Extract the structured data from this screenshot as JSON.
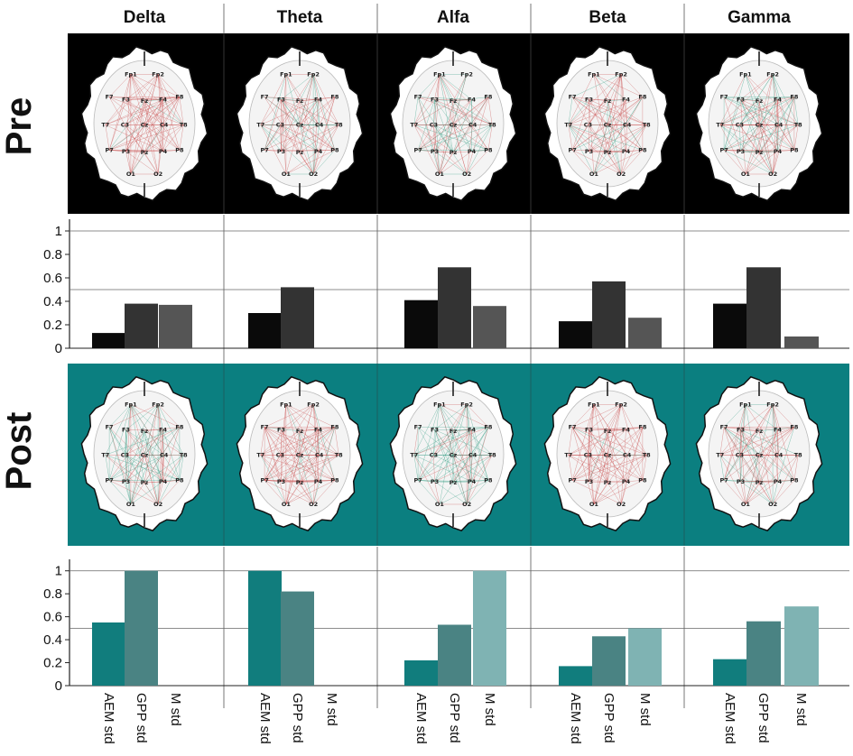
{
  "chart_data": {
    "type": "bar",
    "bands": [
      "Delta",
      "Theta",
      "Alfa",
      "Beta",
      "Gamma"
    ],
    "row_labels": [
      "Pre",
      "Post"
    ],
    "categories": [
      "AEM std",
      "GPP std",
      "M std"
    ],
    "ylim": [
      0,
      1.1
    ],
    "yticks": [
      "0",
      "0.2",
      "0.4",
      "0.6",
      "0.8",
      "1"
    ],
    "electrodes": [
      "Fp1",
      "Fp2",
      "F7",
      "F3",
      "Fz",
      "F4",
      "F8",
      "T7",
      "C3",
      "Cz",
      "C4",
      "T8",
      "P7",
      "P3",
      "Pz",
      "P4",
      "P8",
      "O1",
      "O2"
    ],
    "colors": {
      "pre_bg": "#000000",
      "post_bg": "#0b7f80",
      "pre_bars": [
        "#0a0a0a",
        "#333333",
        "#555555"
      ],
      "post_bars": [
        "#117d7d",
        "#4a8383",
        "#7fb3b3"
      ],
      "red_edge": "#c94a4a",
      "green_edge": "#2e9a80"
    },
    "panels": [
      {
        "row": "Pre",
        "series": [
          {
            "band": "Delta",
            "values": [
              0.13,
              0.38,
              0.37
            ]
          },
          {
            "band": "Theta",
            "values": [
              0.3,
              0.52,
              0
            ]
          },
          {
            "band": "Alfa",
            "values": [
              0.41,
              0.69,
              0.36
            ]
          },
          {
            "band": "Beta",
            "values": [
              0.23,
              0.57,
              0.26
            ]
          },
          {
            "band": "Gamma",
            "values": [
              0.38,
              0.69,
              0.1
            ]
          }
        ]
      },
      {
        "row": "Post",
        "series": [
          {
            "band": "Delta",
            "values": [
              0.55,
              1.0,
              0
            ]
          },
          {
            "band": "Theta",
            "values": [
              1.0,
              0.82,
              0
            ]
          },
          {
            "band": "Alfa",
            "values": [
              0.22,
              0.53,
              1.0
            ]
          },
          {
            "band": "Beta",
            "values": [
              0.17,
              0.43,
              0.5
            ]
          },
          {
            "band": "Gamma",
            "values": [
              0.23,
              0.56,
              0.69
            ]
          }
        ]
      }
    ]
  }
}
